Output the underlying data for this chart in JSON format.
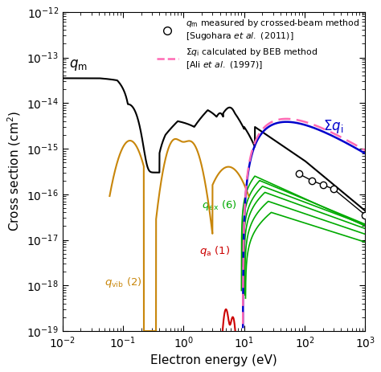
{
  "xlabel": "Electron energy (eV)",
  "ylabel": "Cross section (cm$^2$)",
  "xlim": [
    0.01,
    1000
  ],
  "ylim": [
    1e-19,
    1e-12
  ],
  "color_qm": "#000000",
  "color_qvib": "#C8860A",
  "color_qa": "#CC0000",
  "color_qex": "#00AA00",
  "color_sumqi_blue": "#0000CC",
  "color_sumqi_pink": "#FF69B4",
  "background_color": "#ffffff"
}
